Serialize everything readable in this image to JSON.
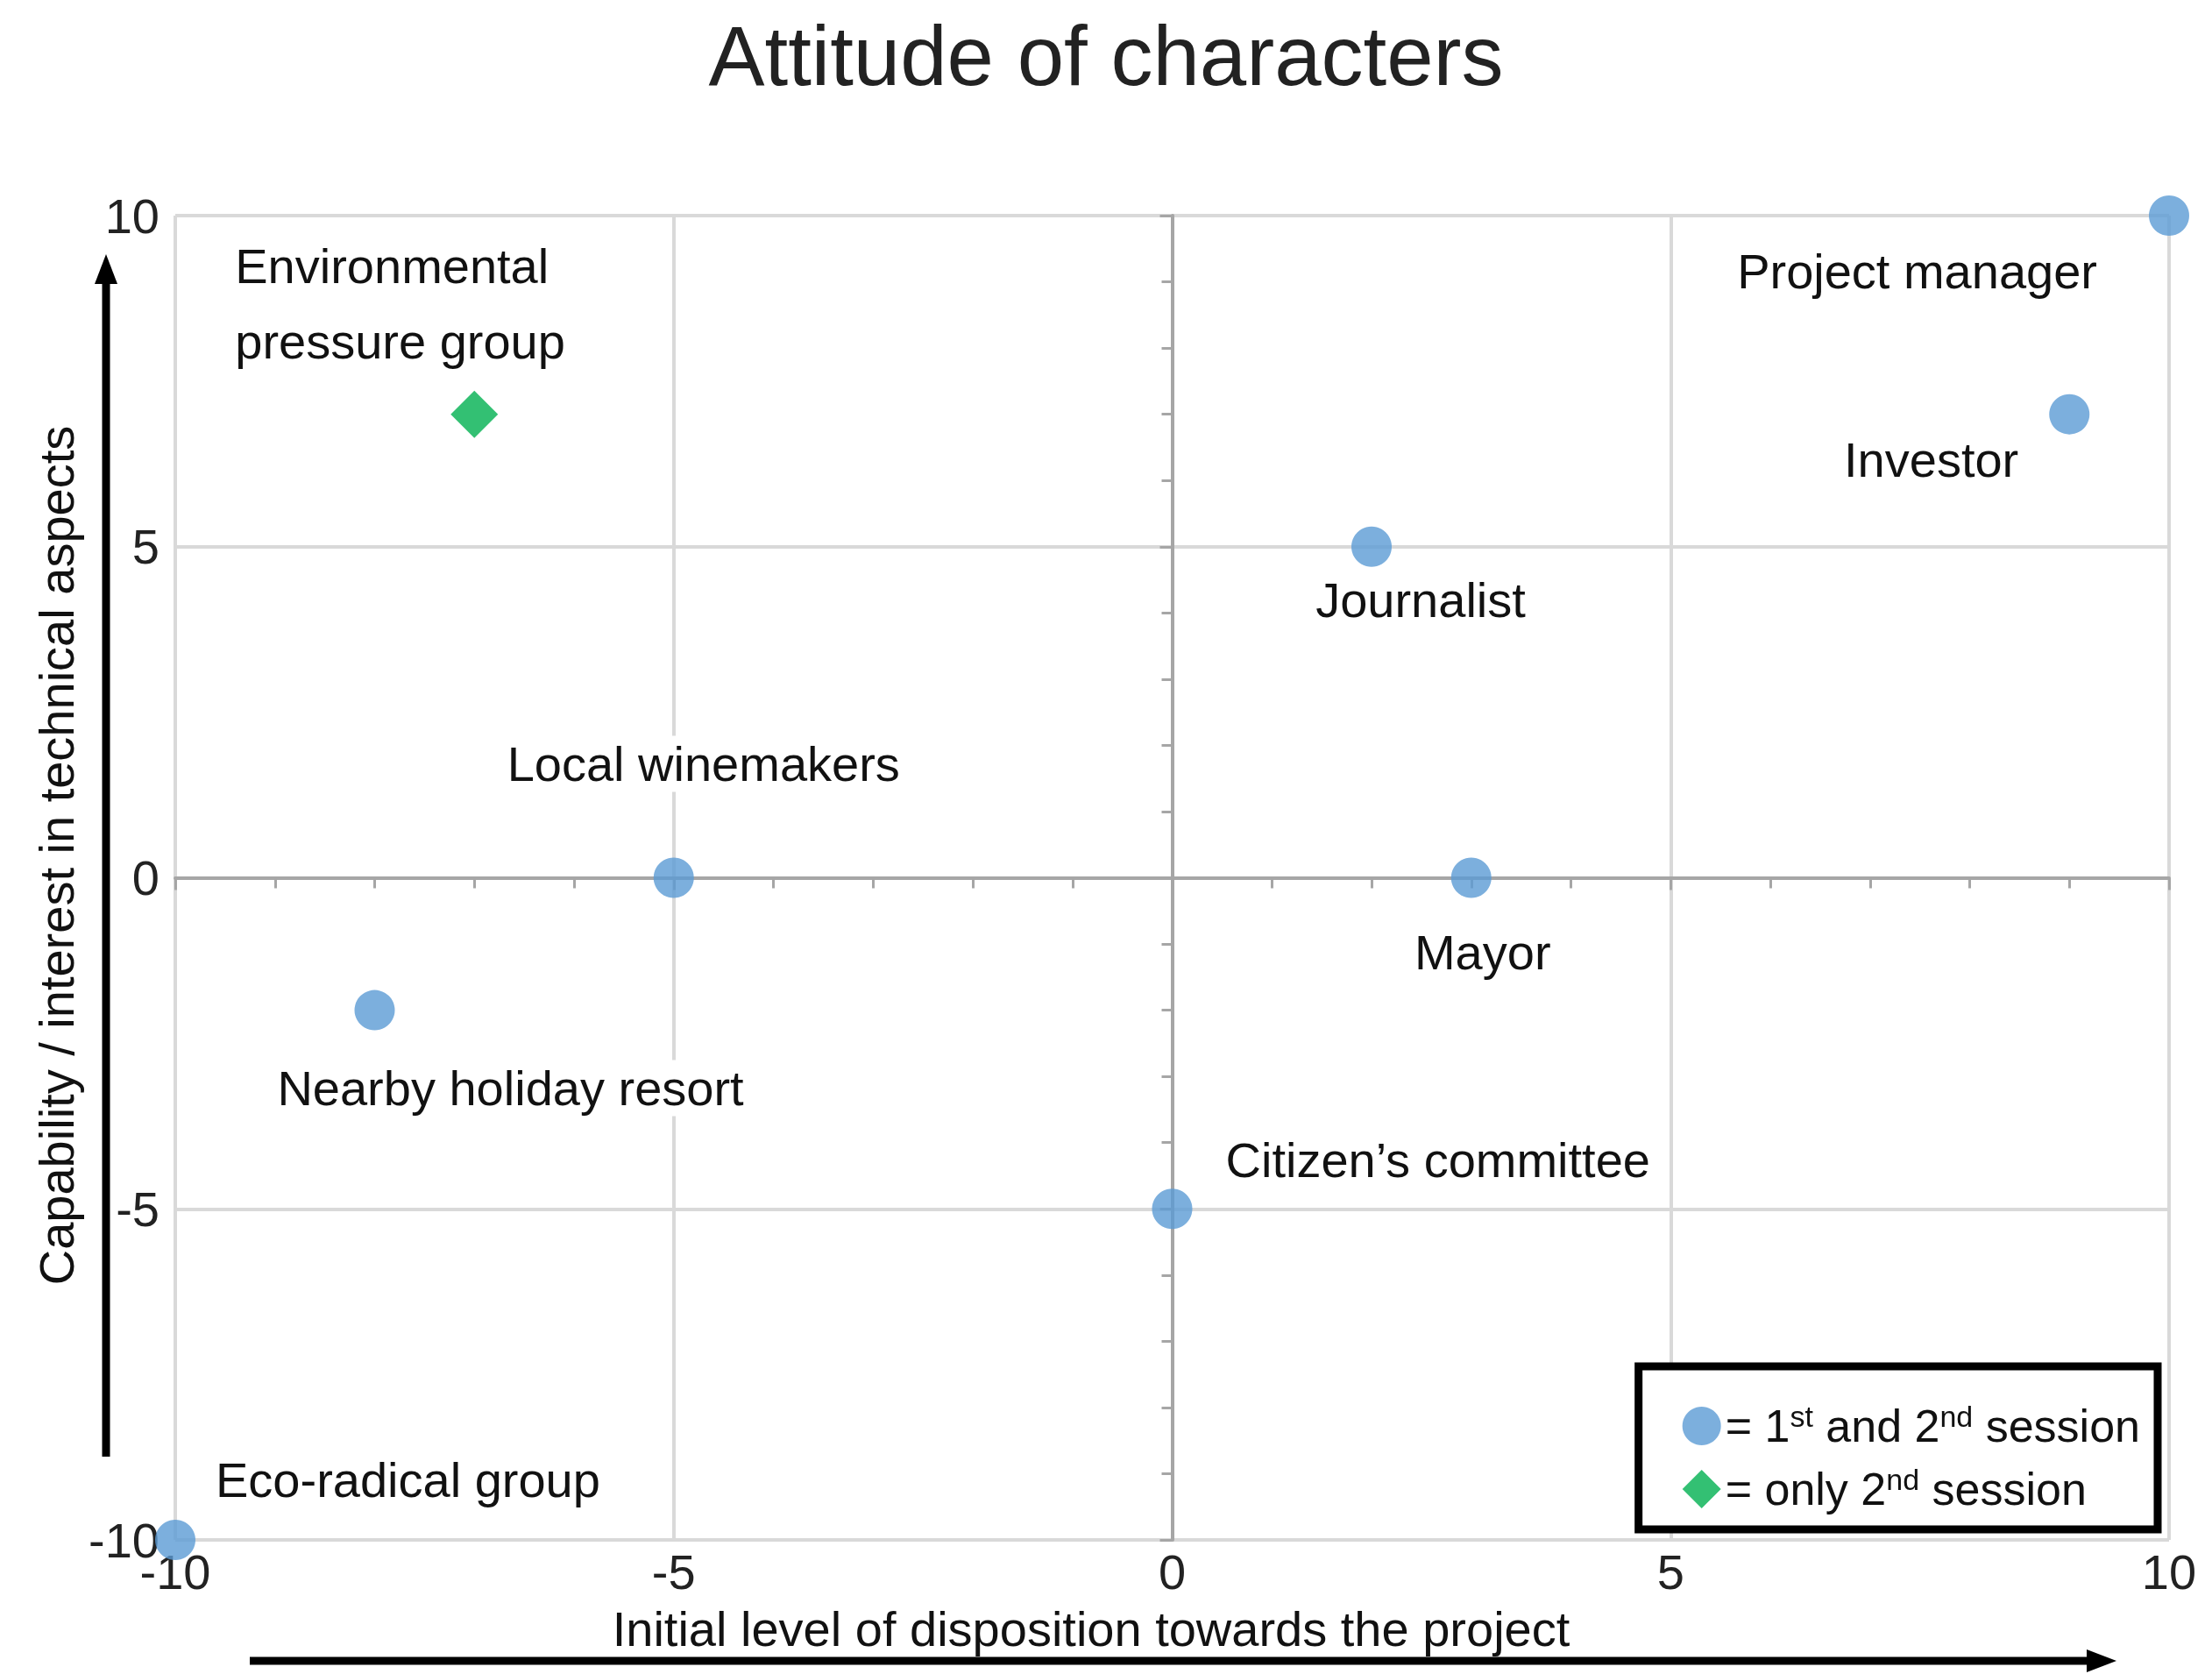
{
  "chart_data": {
    "type": "scatter",
    "title": "Attitude of characters",
    "xlabel": "Initial level of disposition towards the project",
    "ylabel": "Capability / interest in technical aspects",
    "series": [
      {
        "name": "= 1$^{st}$ and 2$^{nd}$ session",
        "color": "#5b9bd5",
        "marker": "circle",
        "x": [
          10,
          9,
          2,
          -5,
          3,
          -8,
          0,
          -10
        ],
        "values": [
          10,
          7,
          5,
          0,
          0,
          -2,
          -5,
          -10
        ]
      },
      {
        "name": "= only 2$^{nd}$ session",
        "color": "#00b050",
        "marker": "diamond",
        "x": [
          -7
        ],
        "values": [
          7
        ]
      }
    ],
    "annotations": [
      {
        "text": "Project manager",
        "x": 10,
        "y": 10
      },
      {
        "text": "Investor",
        "x": 9,
        "y": 7
      },
      {
        "text": "Journalist",
        "x": 2,
        "y": 5
      },
      {
        "text": "Local winemakers",
        "x": -5,
        "y": 0
      },
      {
        "text": "Mayor",
        "x": 3,
        "y": 0
      },
      {
        "text": "Nearby holiday resort",
        "x": -8,
        "y": -2
      },
      {
        "text": "Citizen’s committee",
        "x": 0,
        "y": -5
      },
      {
        "text": "Eco-radical group",
        "x": -10,
        "y": -10
      },
      {
        "text": "Environmental pressure group",
        "x": -7,
        "y": 7
      }
    ],
    "xlim": [
      -10,
      10
    ],
    "xticks": [
      -10,
      -5,
      0,
      5,
      10
    ],
    "ylim": [
      -10,
      10
    ],
    "yticks": [
      -10,
      -5,
      0,
      5,
      10
    ],
    "grid": true,
    "legend": "bottom right"
  }
}
